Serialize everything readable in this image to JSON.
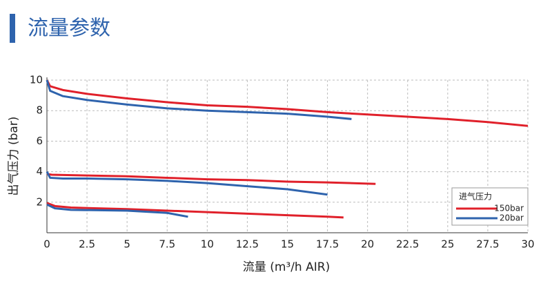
{
  "header": {
    "title": "流量参数"
  },
  "chart_data": {
    "type": "line",
    "x_label": "流量 (m³/h AIR)",
    "y_label": "出气压力 (bar)",
    "xlim": [
      0,
      30
    ],
    "ylim": [
      0,
      10
    ],
    "xticks": [
      0,
      2.5,
      5,
      7.5,
      10,
      12.5,
      15,
      17.5,
      20,
      22.5,
      25,
      27.5,
      30
    ],
    "yticks": [
      2,
      4,
      6,
      8,
      10
    ],
    "grid": true,
    "legend_title": "进气压力",
    "legend_position": "lower right",
    "series": [
      {
        "name": "150bar",
        "color": "#e0202a",
        "curves": [
          {
            "x": [
              0,
              0.2,
              1,
              2.5,
              5,
              7.5,
              10,
              12.5,
              15,
              17.5,
              20,
              22.5,
              25,
              27.5,
              30
            ],
            "values": [
              10,
              9.6,
              9.35,
              9.1,
              8.8,
              8.55,
              8.35,
              8.25,
              8.1,
              7.9,
              7.75,
              7.6,
              7.45,
              7.25,
              7.0
            ]
          },
          {
            "x": [
              0,
              0.3,
              2.5,
              5,
              7.5,
              10,
              12.5,
              15,
              17.5,
              20.5
            ],
            "values": [
              3.85,
              3.8,
              3.75,
              3.7,
              3.6,
              3.5,
              3.45,
              3.35,
              3.3,
              3.2
            ]
          },
          {
            "x": [
              0,
              0.5,
              1.5,
              5,
              7.5,
              10,
              12.5,
              15,
              17.5,
              18.5
            ],
            "values": [
              1.95,
              1.75,
              1.65,
              1.55,
              1.45,
              1.35,
              1.25,
              1.15,
              1.05,
              1.0
            ]
          }
        ]
      },
      {
        "name": "20bar",
        "color": "#2e63ad",
        "curves": [
          {
            "x": [
              0,
              0.2,
              1,
              2.5,
              5,
              7.5,
              10,
              12.5,
              15,
              17.5,
              19
            ],
            "values": [
              10,
              9.3,
              8.95,
              8.7,
              8.4,
              8.15,
              8.0,
              7.9,
              7.8,
              7.6,
              7.45
            ]
          },
          {
            "x": [
              0,
              0.2,
              1,
              2.5,
              5,
              7.5,
              10,
              12.5,
              15,
              17.5
            ],
            "values": [
              4.0,
              3.6,
              3.55,
              3.55,
              3.5,
              3.4,
              3.25,
              3.05,
              2.85,
              2.5
            ]
          },
          {
            "x": [
              0,
              0.5,
              1.5,
              5,
              7.5,
              8.8
            ],
            "values": [
              1.85,
              1.6,
              1.5,
              1.45,
              1.3,
              1.05
            ]
          }
        ]
      }
    ]
  }
}
